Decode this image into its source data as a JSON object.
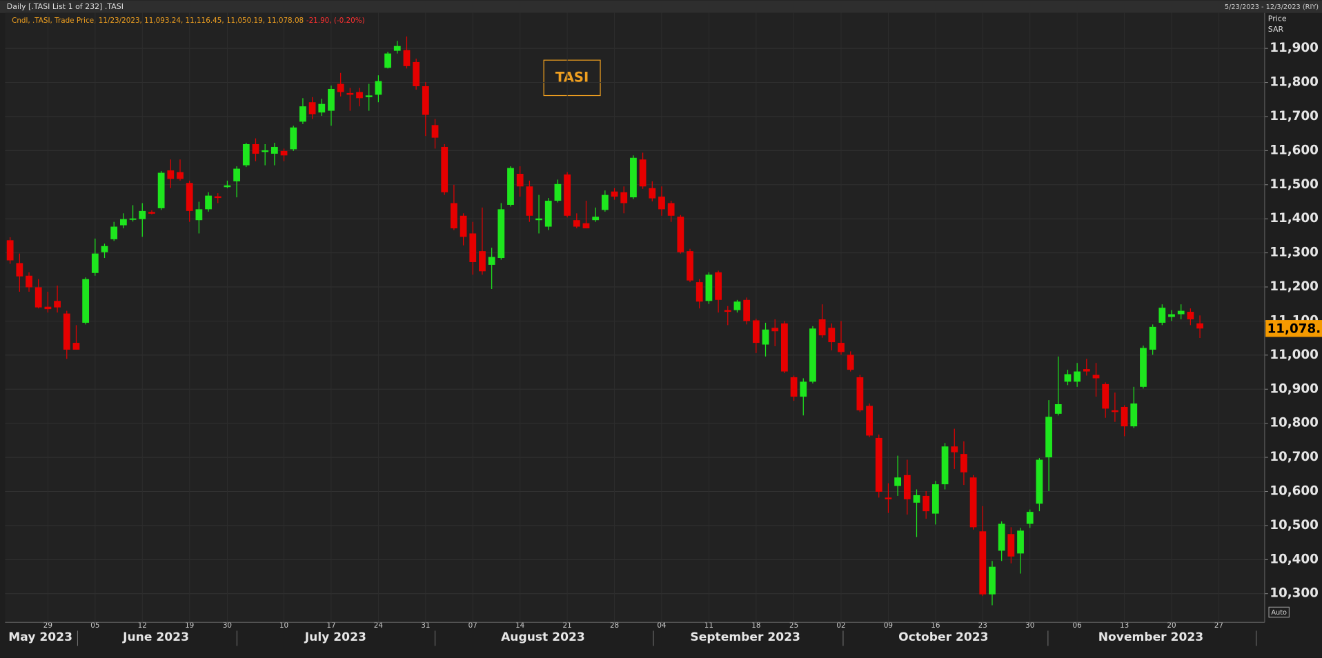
{
  "chart_data": {
    "type": "candlestick",
    "title": "Daily [.TASI List 1 of 232] .TASI",
    "date_range": "5/23/2023 - 12/3/2023 (RIY)",
    "legend_text": "Cndl, .TASI, Trade Price, 11/23/2023, 11,093.24, 11,116.45, 11,050.19, 11,078.08",
    "change_text": "-21.90, (-0.20%)",
    "annotation": "TASI",
    "axis_title": "Price",
    "unit": "SAR",
    "last_price_label": "11,078.",
    "scale_button": "Auto",
    "up_color": "#1ee61e",
    "down_color": "#e60000",
    "grid": true,
    "months": [
      "May 2023",
      "June 2023",
      "July 2023",
      "August 2023",
      "September 2023",
      "October 2023",
      "November 2023"
    ],
    "categories": [
      null,
      null,
      null,
      null,
      "29",
      null,
      null,
      null,
      null,
      "05",
      null,
      null,
      null,
      null,
      "12",
      null,
      null,
      null,
      null,
      "19",
      null,
      null,
      null,
      "30",
      null,
      null,
      null,
      null,
      null,
      "10",
      null,
      null,
      null,
      null,
      "17",
      null,
      null,
      null,
      null,
      "24",
      null,
      null,
      null,
      null,
      "31",
      null,
      null,
      null,
      null,
      "07",
      null,
      null,
      null,
      null,
      "14",
      null,
      null,
      null,
      null,
      "21",
      null,
      null,
      null,
      null,
      "28",
      null,
      null,
      null,
      null,
      "04",
      null,
      null,
      null,
      null,
      "11",
      null,
      null,
      null,
      null,
      "18",
      null,
      null,
      null,
      "25",
      null,
      null,
      null,
      null,
      "02",
      null,
      null,
      null,
      null,
      "09",
      null,
      null,
      null,
      null,
      "16",
      null,
      null,
      null,
      null,
      "23",
      null,
      null,
      null,
      null,
      "30",
      null,
      null,
      null,
      null,
      "06",
      null,
      null,
      null,
      null,
      "13",
      null,
      null,
      null,
      null,
      "20",
      null,
      null,
      null,
      null,
      "27"
    ],
    "open": [
      11337,
      11270,
      11233,
      11199,
      11142,
      11159,
      11122,
      11036,
      11095,
      11241,
      11302,
      11340,
      11381,
      11397,
      11399,
      11420,
      11431,
      11542,
      11537,
      11505,
      11396,
      11428,
      11466,
      11493,
      11510,
      11557,
      11619,
      11596,
      11591,
      11599,
      11604,
      11685,
      11742,
      11712,
      11717,
      11796,
      11769,
      11772,
      11757,
      11764,
      11843,
      11893,
      11895,
      11860,
      11789,
      11675,
      11611,
      11446,
      11409,
      11357,
      11305,
      11265,
      11285,
      11441,
      11532,
      11495,
      11396,
      11377,
      11453,
      11530,
      11396,
      11387,
      11396,
      11426,
      11480,
      11478,
      11463,
      11574,
      11490,
      11465,
      11446,
      11406,
      11305,
      11214,
      11159,
      11243,
      11132,
      11132,
      11162,
      11102,
      11031,
      11080,
      11093,
      10935,
      10878,
      10922,
      11105,
      11080,
      11036,
      11001,
      10935,
      10851,
      10757,
      10582,
      10616,
      10648,
      10567,
      10587,
      10535,
      10621,
      10732,
      10710,
      10641,
      10483,
      10298,
      10426,
      10475,
      10418,
      10505,
      10564,
      10700,
      10828,
      10922,
      10922,
      10959,
      10942,
      10915,
      10838,
      10848,
      10791,
      10907,
      11016,
      11095,
      11112,
      11120,
      11127,
      11093.24,
      null,
      null
    ],
    "high": [
      11346,
      11298,
      11243,
      11223,
      11186,
      11204,
      11130,
      11088,
      11228,
      11342,
      11327,
      11391,
      11416,
      11440,
      11446,
      11425,
      11540,
      11574,
      11574,
      11512,
      11450,
      11478,
      11475,
      11512,
      11554,
      11623,
      11636,
      11619,
      11623,
      11606,
      11673,
      11754,
      11757,
      11752,
      11791,
      11828,
      11784,
      11784,
      11796,
      11821,
      11890,
      11922,
      11935,
      11870,
      11801,
      11693,
      11619,
      11500,
      11416,
      11391,
      11433,
      11315,
      11446,
      11554,
      11554,
      11512,
      11470,
      11461,
      11515,
      11537,
      11416,
      11453,
      11433,
      11483,
      11490,
      11495,
      11586,
      11594,
      11510,
      11495,
      11453,
      11411,
      11312,
      11223,
      11243,
      11248,
      11144,
      11162,
      11169,
      11107,
      11095,
      11105,
      11100,
      10940,
      10932,
      11085,
      11149,
      11093,
      11100,
      11011,
      10942,
      10858,
      10767,
      10624,
      10705,
      10693,
      10606,
      10601,
      10631,
      10742,
      10784,
      10747,
      10648,
      10557,
      10396,
      10512,
      10495,
      10493,
      10547,
      10698,
      10868,
      10996,
      10957,
      10977,
      10989,
      10977,
      10920,
      10890,
      10853,
      10907,
      11028,
      11090,
      11149,
      11132,
      11149,
      11137,
      11116.45,
      null,
      null
    ],
    "low": [
      11268,
      11186,
      11186,
      11137,
      11125,
      11125,
      10989,
      11016,
      11090,
      11233,
      11285,
      11335,
      11372,
      11392,
      11347,
      11413,
      11426,
      11490,
      11512,
      11391,
      11357,
      11421,
      11446,
      11490,
      11463,
      11552,
      11569,
      11557,
      11557,
      11569,
      11599,
      11678,
      11693,
      11702,
      11673,
      11759,
      11717,
      11730,
      11717,
      11742,
      11841,
      11885,
      11841,
      11779,
      11643,
      11606,
      11470,
      11367,
      11322,
      11236,
      11236,
      11194,
      11280,
      11436,
      11465,
      11391,
      11357,
      11367,
      11448,
      11404,
      11372,
      11372,
      11391,
      11421,
      11456,
      11416,
      11458,
      11488,
      11451,
      11409,
      11391,
      11298,
      11214,
      11137,
      11150,
      11125,
      11088,
      11125,
      11090,
      11006,
      10996,
      11026,
      10947,
      10866,
      10823,
      10917,
      11051,
      11014,
      11001,
      10952,
      10833,
      10759,
      10582,
      10537,
      10587,
      10532,
      10466,
      10520,
      10503,
      10606,
      10666,
      10619,
      10488,
      10293,
      10266,
      10396,
      10389,
      10359,
      10493,
      10542,
      10601,
      10823,
      10912,
      10907,
      10940,
      10878,
      10816,
      10804,
      10762,
      10786,
      10902,
      11001,
      11088,
      11100,
      11105,
      11088,
      11050.19,
      null,
      null
    ],
    "close": [
      11278,
      11231,
      11199,
      11140,
      11135,
      11140,
      11016,
      11016,
      11223,
      11298,
      11320,
      11377,
      11399,
      11401,
      11423,
      11415,
      11535,
      11517,
      11517,
      11423,
      11428,
      11468,
      11461,
      11498,
      11547,
      11619,
      11591,
      11601,
      11611,
      11586,
      11668,
      11730,
      11707,
      11737,
      11781,
      11772,
      11764,
      11754,
      11762,
      11804,
      11885,
      11907,
      11848,
      11789,
      11705,
      11638,
      11478,
      11372,
      11347,
      11273,
      11246,
      11288,
      11428,
      11549,
      11495,
      11409,
      11401,
      11453,
      11502,
      11409,
      11377,
      11372,
      11406,
      11470,
      11465,
      11446,
      11579,
      11495,
      11460,
      11428,
      11409,
      11302,
      11219,
      11157,
      11236,
      11162,
      11127,
      11157,
      11100,
      11036,
      11075,
      11070,
      10952,
      10878,
      10922,
      11078,
      11058,
      11038,
      11009,
      10957,
      10838,
      10764,
      10599,
      10577,
      10641,
      10577,
      10589,
      10542,
      10621,
      10732,
      10715,
      10656,
      10495,
      10298,
      10379,
      10505,
      10409,
      10485,
      10540,
      10693,
      10819,
      10856,
      10944,
      10952,
      10952,
      10932,
      10843,
      10833,
      10791,
      10858,
      11021,
      11083,
      11139,
      11120,
      11130,
      11105,
      11078.08,
      null,
      null
    ],
    "ylim": [
      10216,
      12004
    ],
    "yticks": [
      {
        "value": 10300,
        "label": "10,300"
      },
      {
        "value": 10400,
        "label": "10,400"
      },
      {
        "value": 10500,
        "label": "10,500"
      },
      {
        "value": 10600,
        "label": "10,600"
      },
      {
        "value": 10700,
        "label": "10,700"
      },
      {
        "value": 10800,
        "label": "10,800"
      },
      {
        "value": 10900,
        "label": "10,900"
      },
      {
        "value": 11000,
        "label": "11,000"
      },
      {
        "value": 11100,
        "label": "11,100"
      },
      {
        "value": 11200,
        "label": "11,200"
      },
      {
        "value": 11300,
        "label": "11,300"
      },
      {
        "value": 11400,
        "label": "11,400"
      },
      {
        "value": 11500,
        "label": "11,500"
      },
      {
        "value": 11600,
        "label": "11,600"
      },
      {
        "value": 11700,
        "label": "11,700"
      },
      {
        "value": 11800,
        "label": "11,800"
      },
      {
        "value": 11900,
        "label": "11,900"
      }
    ]
  }
}
